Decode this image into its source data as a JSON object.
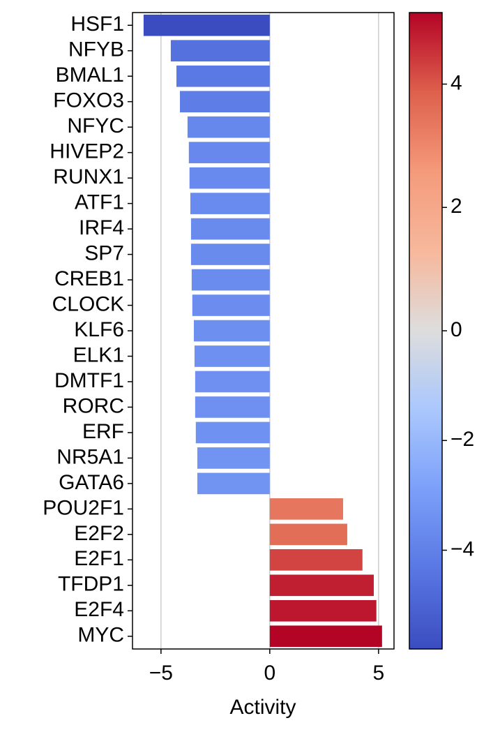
{
  "chart_data": {
    "type": "bar",
    "orientation": "horizontal",
    "xlabel": "Activity",
    "categories": [
      "HSF1",
      "NFYB",
      "BMAL1",
      "FOXO3",
      "NFYC",
      "HIVEP2",
      "RUNX1",
      "ATF1",
      "IRF4",
      "SP7",
      "CREB1",
      "CLOCK",
      "KLF6",
      "ELK1",
      "DMTF1",
      "RORC",
      "ERF",
      "NR5A1",
      "GATA6",
      "POU2F1",
      "E2F2",
      "E2F1",
      "TFDP1",
      "E2F4",
      "MYC"
    ],
    "values": [
      -5.8,
      -4.55,
      -4.29,
      -4.13,
      -3.78,
      -3.72,
      -3.69,
      -3.65,
      -3.62,
      -3.62,
      -3.59,
      -3.56,
      -3.49,
      -3.46,
      -3.43,
      -3.43,
      -3.4,
      -3.33,
      -3.33,
      3.37,
      3.56,
      4.26,
      4.78,
      4.9,
      5.16
    ],
    "xlim": [
      -6.31,
      5.71
    ],
    "xticks": [
      {
        "value": -5,
        "label": "−5"
      },
      0,
      5
    ],
    "grid": true,
    "colormap": "coolwarm",
    "clim": [
      -5.8,
      5.16
    ],
    "cticks": [
      {
        "value": -4,
        "label": "−4"
      },
      {
        "value": -2,
        "label": "−2"
      },
      0,
      2,
      4
    ]
  }
}
